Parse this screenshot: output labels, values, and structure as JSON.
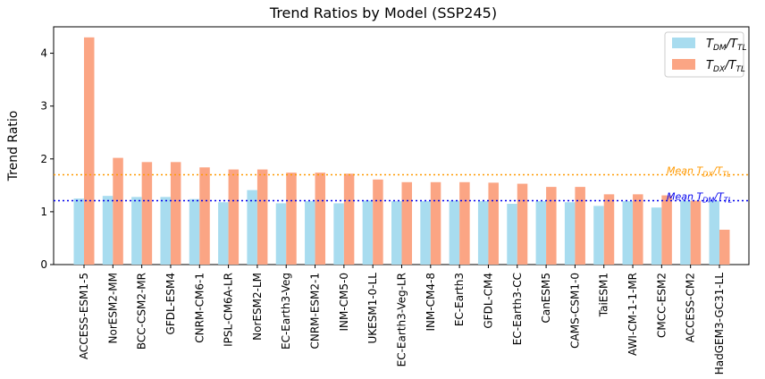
{
  "chart_data": {
    "type": "bar",
    "title": "Trend Ratios by Model (SSP245)",
    "ylabel": "Trend Ratio",
    "xlabel": "",
    "ylim": [
      0,
      4.5
    ],
    "yticks": [
      0,
      1,
      2,
      3,
      4
    ],
    "categories": [
      "ACCESS-ESM1-5",
      "NorESM2-MM",
      "BCC-CSM2-MR",
      "GFDL-ESM4",
      "CNRM-CM6-1",
      "IPSL-CM6A-LR",
      "NorESM2-LM",
      "EC-Earth3-Veg",
      "CNRM-ESM2-1",
      "INM-CM5-0",
      "UKESM1-0-LL",
      "EC-Earth3-Veg-LR",
      "INM-CM4-8",
      "EC-Earth3",
      "GFDL-CM4",
      "EC-Earth3-CC",
      "CanESM5",
      "CAMS-CSM1-0",
      "TaiESM1",
      "AWI-CM-1-1-MR",
      "CMCC-ESM2",
      "ACCESS-CM2",
      "HadGEM3-GC31-LL"
    ],
    "series": [
      {
        "name": "T_DM/T_TL",
        "legend_main": "T",
        "legend_sub1": "DM",
        "legend_mid": "/T",
        "legend_sub2": "TL",
        "color": "#a8dcef",
        "values": [
          1.25,
          1.3,
          1.28,
          1.28,
          1.24,
          1.18,
          1.41,
          1.16,
          1.2,
          1.16,
          1.21,
          1.2,
          1.2,
          1.21,
          1.2,
          1.15,
          1.2,
          1.18,
          1.11,
          1.2,
          1.08,
          1.21,
          1.21
        ]
      },
      {
        "name": "T_DX/T_TL",
        "legend_main": "T",
        "legend_sub1": "DX",
        "legend_mid": "/T",
        "legend_sub2": "TL",
        "color": "#fba584",
        "values": [
          4.3,
          2.02,
          1.94,
          1.94,
          1.84,
          1.8,
          1.8,
          1.74,
          1.74,
          1.72,
          1.61,
          1.56,
          1.56,
          1.56,
          1.55,
          1.53,
          1.47,
          1.47,
          1.33,
          1.33,
          1.31,
          1.21,
          0.66
        ]
      }
    ],
    "reference_lines": [
      {
        "label_main": "Mean T",
        "label_sub1": "DX",
        "label_mid": "/T",
        "label_sub2": "TL",
        "value": 1.7,
        "color": "#ff9900",
        "style": "dotted"
      },
      {
        "label_main": "Mean T",
        "label_sub1": "DM",
        "label_mid": "/T",
        "label_sub2": "TL",
        "value": 1.21,
        "color": "#0000ee",
        "style": "dotted"
      }
    ],
    "legend_position": "top-right",
    "grid": false
  }
}
